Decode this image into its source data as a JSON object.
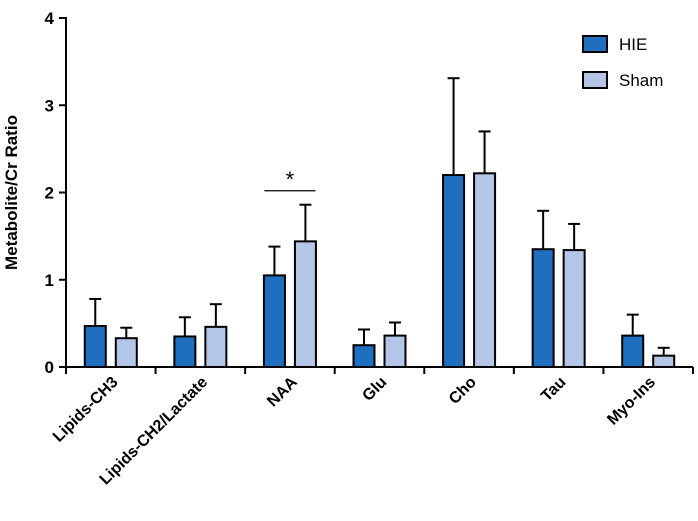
{
  "chart_data": {
    "type": "bar",
    "title": "",
    "xlabel": "",
    "ylabel": "Metabolite/Cr  Ratio",
    "ylim": [
      0,
      4
    ],
    "yticks": [
      0,
      1,
      2,
      3,
      4
    ],
    "grid": false,
    "legend_position": "top-right",
    "error_bars": "one-sided upward",
    "categories": [
      "Lipids-CH3",
      "Lipids-CH2/Lactate",
      "NAA",
      "Glu",
      "Cho",
      "Tau",
      "Myo-Ins"
    ],
    "series": [
      {
        "name": "HIE",
        "color": "#1f6fbf",
        "values": [
          0.47,
          0.35,
          1.05,
          0.25,
          2.2,
          1.35,
          0.36
        ],
        "errors": [
          0.31,
          0.22,
          0.33,
          0.18,
          1.11,
          0.44,
          0.24
        ]
      },
      {
        "name": "Sham",
        "color": "#b4c6e7",
        "values": [
          0.33,
          0.46,
          1.44,
          0.36,
          2.22,
          1.34,
          0.13
        ],
        "errors": [
          0.12,
          0.26,
          0.42,
          0.15,
          0.48,
          0.3,
          0.09
        ]
      }
    ],
    "annotations": [
      {
        "category": "NAA",
        "text": "*",
        "y": 2.02
      }
    ]
  }
}
